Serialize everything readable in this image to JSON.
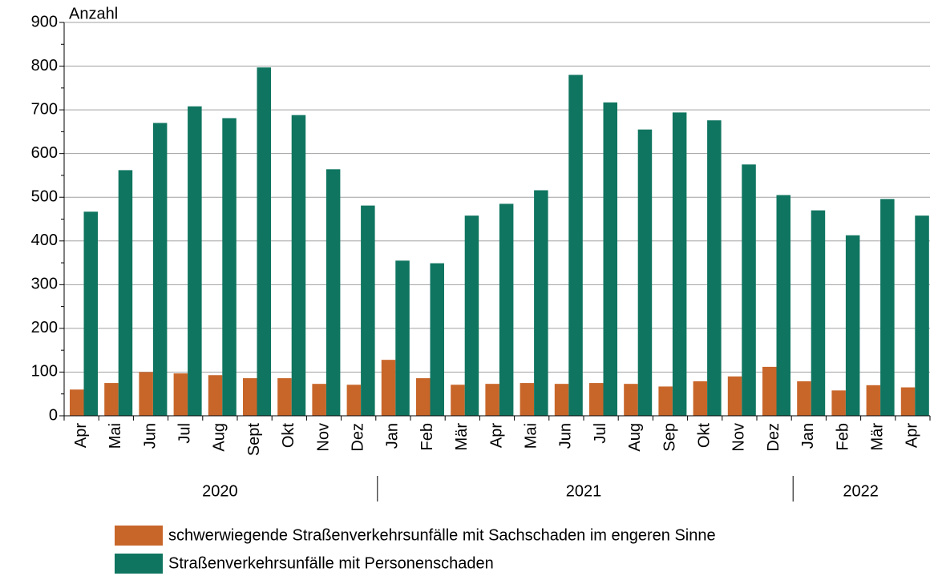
{
  "chart_data": {
    "type": "bar",
    "y_label": "Anzahl",
    "categories": [
      "Apr",
      "Mai",
      "Jun",
      "Jul",
      "Aug",
      "Sept",
      "Okt",
      "Nov",
      "Dez",
      "Jan",
      "Feb",
      "Mär",
      "Apr",
      "Mai",
      "Jun",
      "Jul",
      "Aug",
      "Sep",
      "Okt",
      "Nov",
      "Dez",
      "Jan",
      "Feb",
      "Mär",
      "Apr"
    ],
    "groups": [
      {
        "label": "2020",
        "count": 9
      },
      {
        "label": "2021",
        "count": 12
      },
      {
        "label": "2022",
        "count": 4
      }
    ],
    "series": [
      {
        "name": "schwerwiegende Straßenverkehrsunfälle mit Sachschaden im engeren Sinne",
        "color": "#c8662a",
        "values": [
          60,
          75,
          100,
          97,
          93,
          86,
          86,
          73,
          71,
          128,
          86,
          71,
          73,
          75,
          73,
          75,
          73,
          67,
          79,
          90,
          112,
          79,
          58,
          70,
          65
        ]
      },
      {
        "name": "Straßenverkehrsunfälle mit Personenschaden",
        "color": "#0f7560",
        "values": [
          467,
          562,
          670,
          708,
          681,
          797,
          688,
          564,
          481,
          355,
          349,
          458,
          485,
          516,
          780,
          717,
          655,
          694,
          676,
          575,
          505,
          470,
          413,
          496,
          458
        ]
      }
    ],
    "ylim": [
      0,
      900
    ],
    "yticks": [
      0,
      100,
      200,
      300,
      400,
      500,
      600,
      700,
      800,
      900
    ],
    "grid": true
  }
}
